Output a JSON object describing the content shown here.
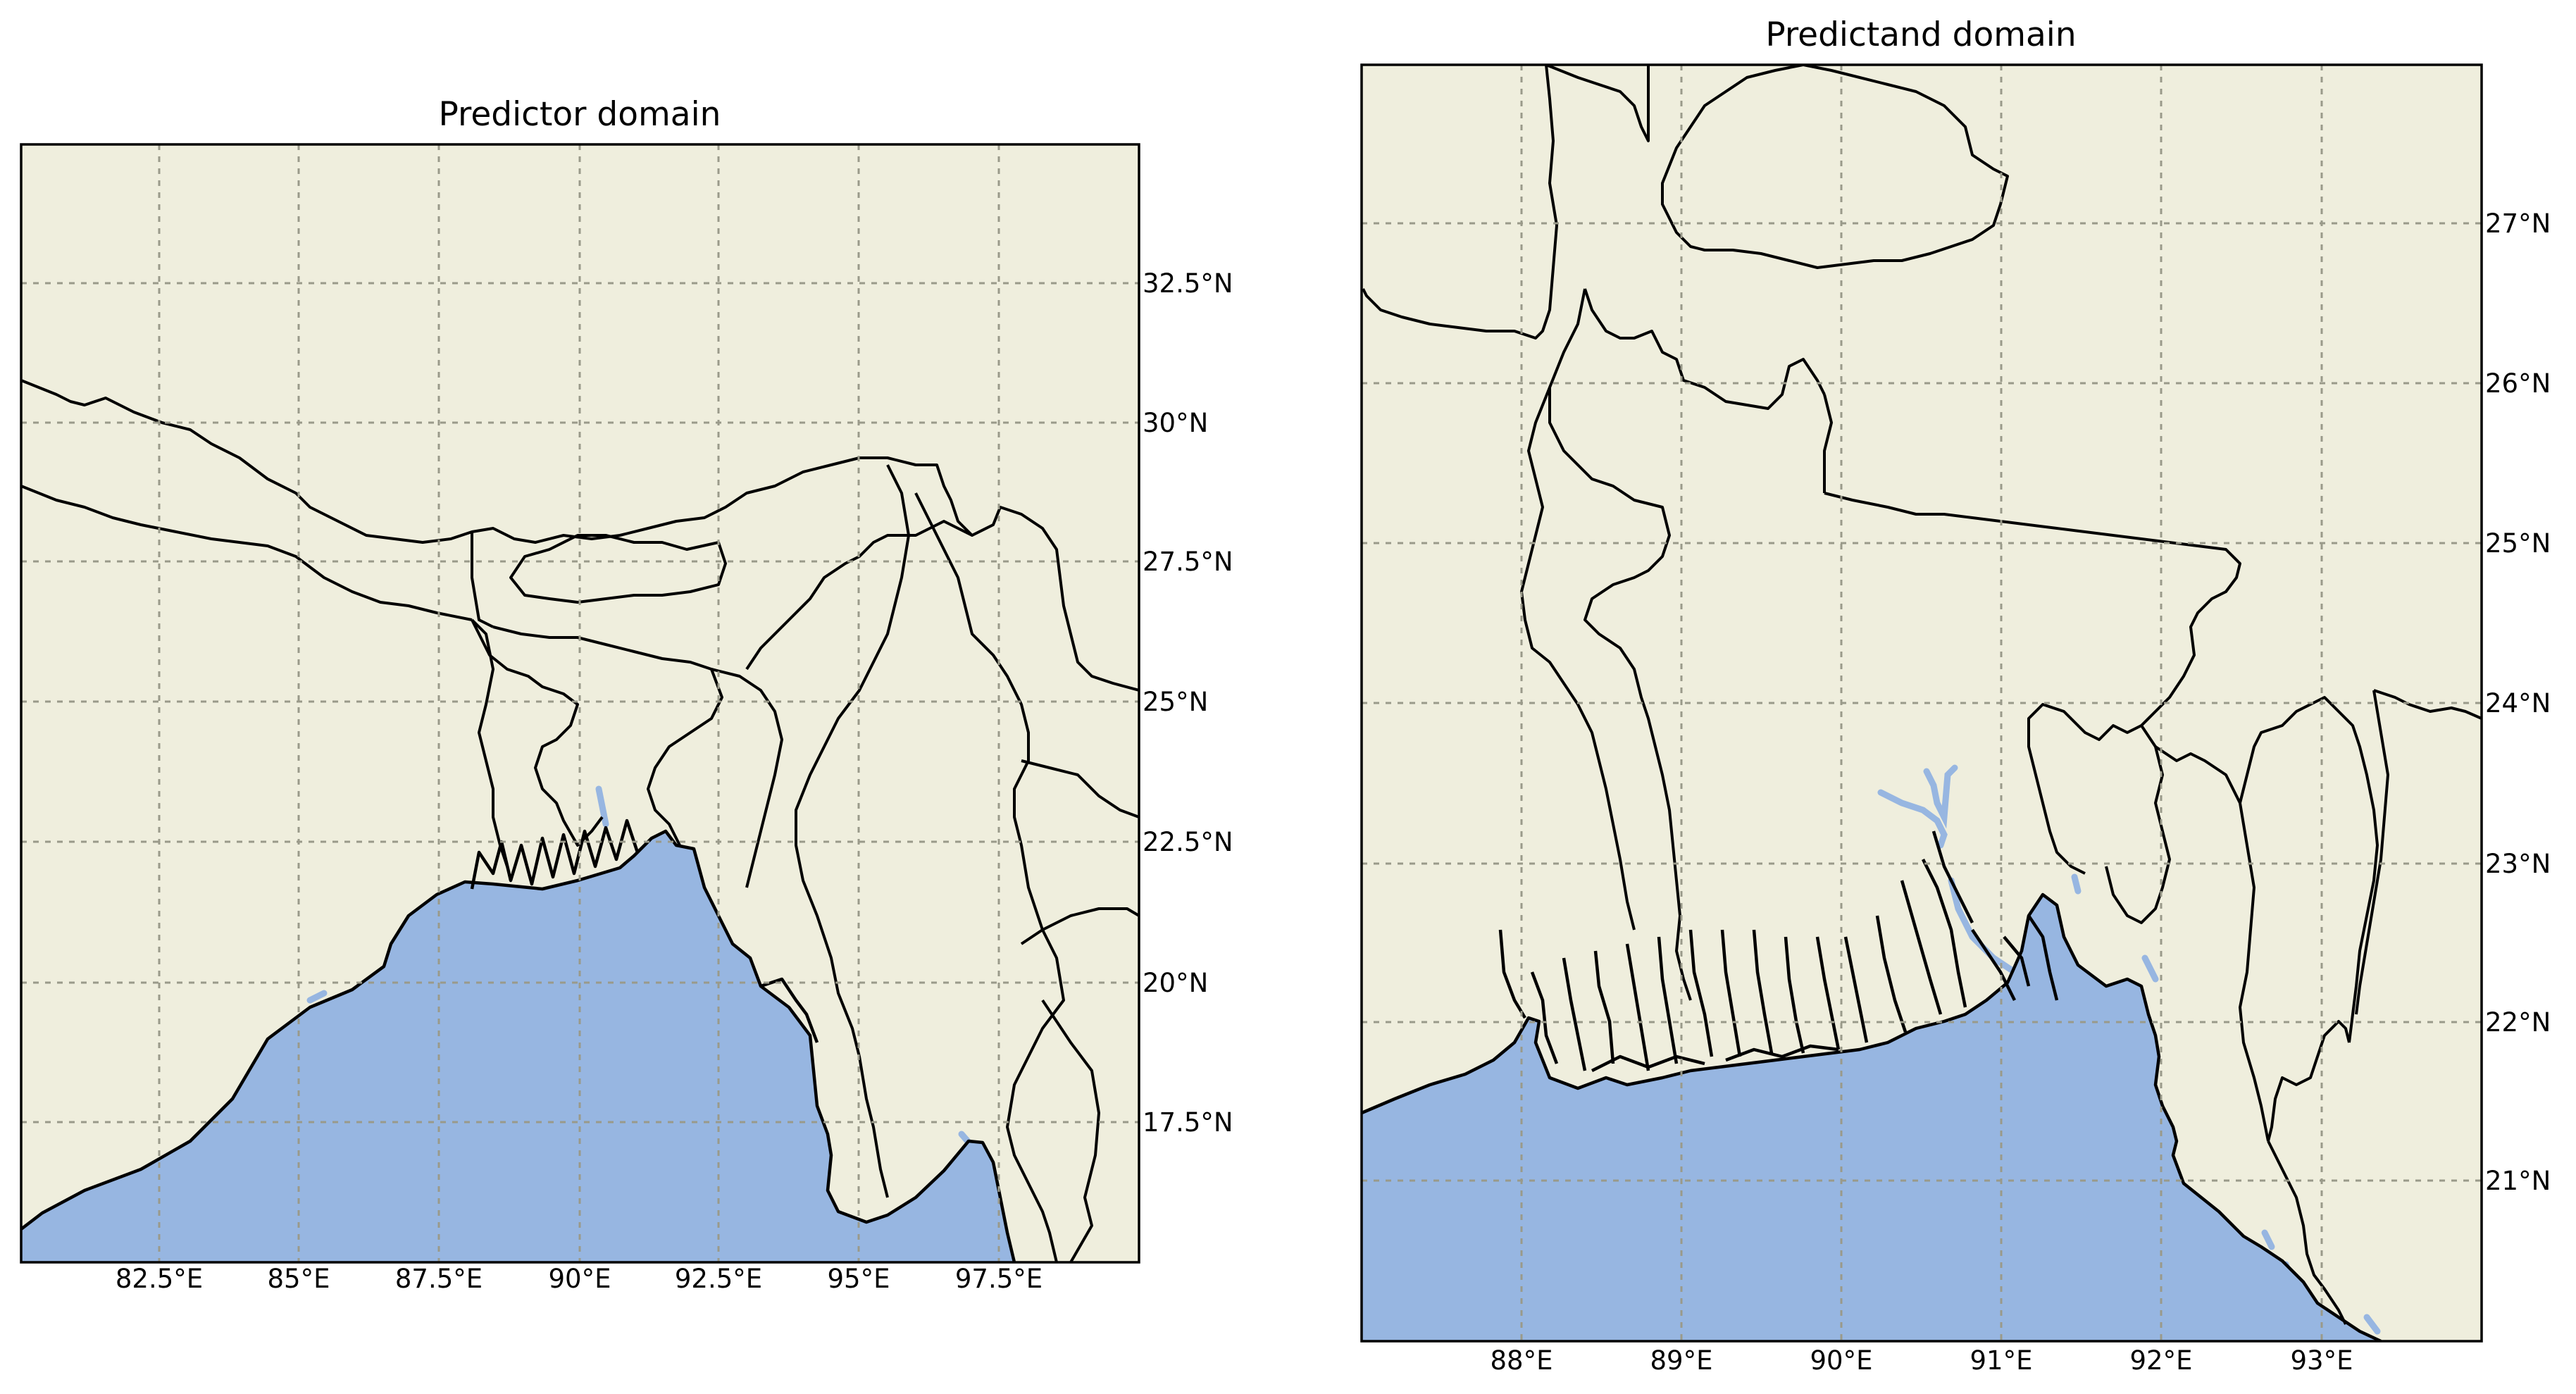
{
  "left_map": {
    "title": "Predictor domain",
    "lon_ticks": [
      "82.5°E",
      "85°E",
      "87.5°E",
      "90°E",
      "92.5°E",
      "95°E",
      "97.5°E"
    ],
    "lat_ticks": [
      "32.5°N",
      "30°N",
      "27.5°N",
      "25°N",
      "22.5°N",
      "20°N",
      "17.5°N"
    ],
    "extent": {
      "lon_min": 80.0,
      "lon_max": 100.0,
      "lat_min": 15.0,
      "lat_max": 35.0
    }
  },
  "right_map": {
    "title": "Predictand domain",
    "lon_ticks": [
      "88°E",
      "89°E",
      "90°E",
      "91°E",
      "92°E",
      "93°E"
    ],
    "lat_ticks": [
      "27°N",
      "26°N",
      "25°N",
      "24°N",
      "23°N",
      "22°N",
      "21°N"
    ],
    "extent": {
      "lon_min": 87.0,
      "lon_max": 94.0,
      "lat_min": 20.0,
      "lat_max": 28.0
    }
  },
  "colors": {
    "land": "#efeedd",
    "ocean": "#97b6e1",
    "gridlines": "#9a9a8a",
    "borders": "#000000"
  }
}
